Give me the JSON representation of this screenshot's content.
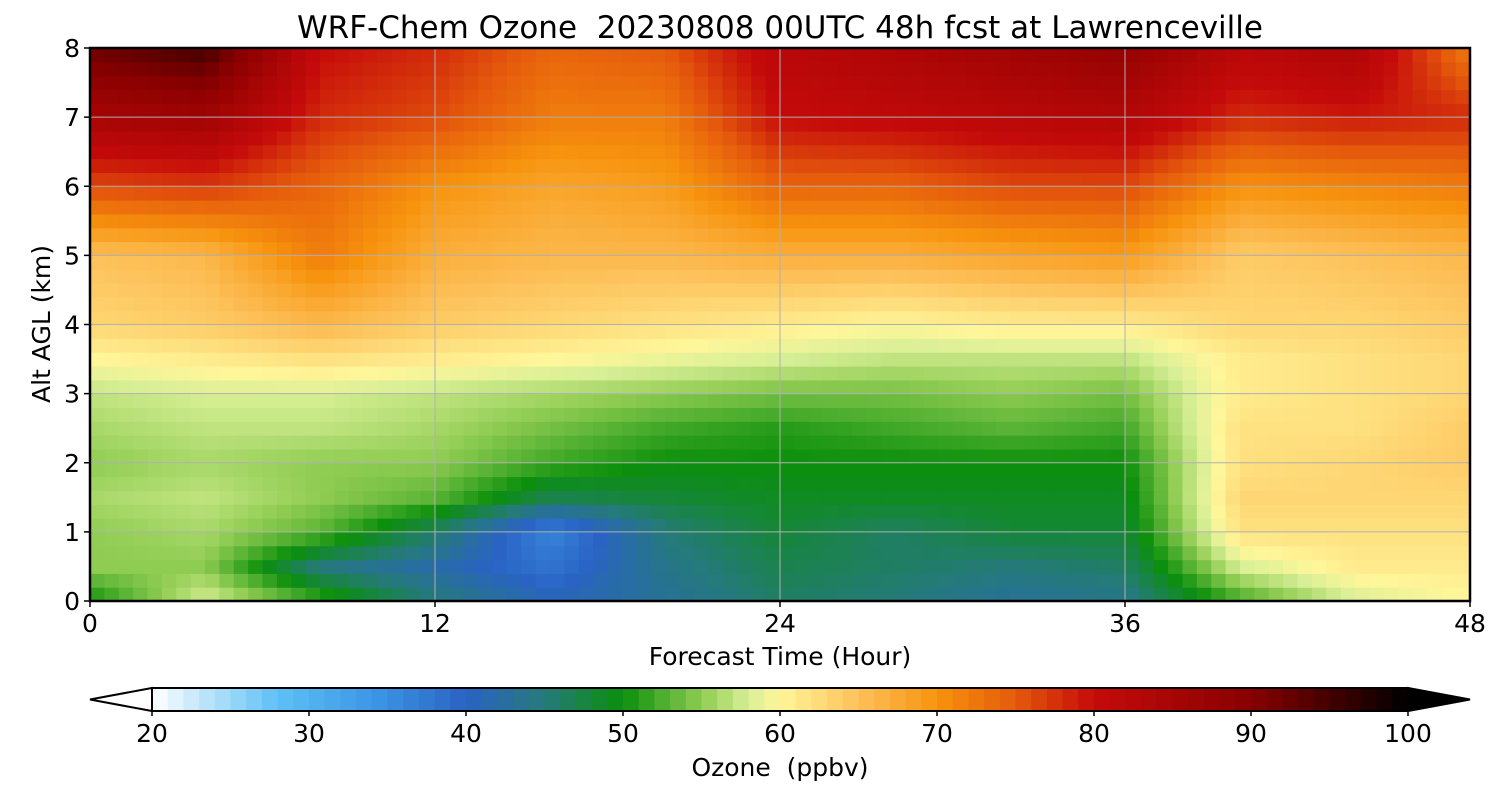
{
  "chart_data": {
    "type": "heatmap",
    "title": "WRF-Chem Ozone  20230808 00UTC 48h fcst at Lawrenceville",
    "xlabel": "Forecast Time (Hour)",
    "ylabel": "Alt AGL (km)",
    "xlim": [
      0,
      48
    ],
    "ylim": [
      0,
      8
    ],
    "x_ticks": [
      0,
      12,
      24,
      36,
      48
    ],
    "y_ticks": [
      0,
      1,
      2,
      3,
      4,
      5,
      6,
      7,
      8
    ],
    "grid": true,
    "x_hours": [
      0,
      4,
      8,
      12,
      16,
      20,
      24,
      28,
      32,
      36,
      40,
      44,
      48
    ],
    "z_km": [
      0,
      0.5,
      1,
      1.5,
      2,
      2.5,
      3,
      3.5,
      4,
      5,
      6,
      7,
      8
    ],
    "values_ppbv": [
      [
        50,
        55,
        55,
        56,
        55,
        56,
        57,
        60,
        63,
        65,
        76,
        85,
        92
      ],
      [
        58,
        55,
        56,
        57,
        56,
        57,
        58,
        61,
        64,
        66,
        77,
        86,
        95
      ],
      [
        52,
        45,
        53,
        55,
        55,
        57,
        58,
        62,
        66,
        72,
        74,
        78,
        80
      ],
      [
        45,
        42,
        46,
        53,
        55,
        56,
        57,
        61,
        64,
        67,
        70,
        76,
        78
      ],
      [
        41,
        38,
        36,
        47,
        52,
        54,
        56,
        60,
        63,
        66,
        68,
        72,
        74
      ],
      [
        43,
        44,
        45,
        48,
        50,
        52,
        55,
        59,
        62,
        66,
        69,
        72,
        75
      ],
      [
        46,
        47,
        48,
        49,
        50,
        51,
        54,
        58,
        61,
        67,
        74,
        80,
        82
      ],
      [
        45,
        46,
        46,
        49,
        50,
        52,
        54,
        57,
        60,
        67,
        74,
        81,
        84
      ],
      [
        43,
        45,
        48,
        49,
        50,
        53,
        55,
        57,
        61,
        68,
        76,
        82,
        86
      ],
      [
        44,
        46,
        48,
        49,
        50,
        52,
        54,
        57,
        61,
        69,
        76,
        83,
        88
      ],
      [
        52,
        58,
        62,
        63,
        62,
        62,
        61,
        61,
        63,
        64,
        70,
        78,
        82
      ],
      [
        58,
        61,
        62,
        63,
        63,
        62,
        62,
        62,
        63,
        65,
        71,
        79,
        84
      ],
      [
        60,
        61,
        62,
        63,
        64,
        64,
        63,
        63,
        64,
        66,
        72,
        78,
        72
      ]
    ],
    "colorbar": {
      "label": "Ozone  (ppbv)",
      "min": 20,
      "max": 100,
      "ticks": [
        20,
        30,
        40,
        50,
        60,
        70,
        80,
        90,
        100
      ],
      "extend": "both",
      "colors": [
        {
          "value": 20,
          "color": "#ffffff"
        },
        {
          "value": 28,
          "color": "#5ec0f5"
        },
        {
          "value": 34,
          "color": "#3d97e6"
        },
        {
          "value": 40,
          "color": "#2a63c4"
        },
        {
          "value": 45,
          "color": "#257a7a"
        },
        {
          "value": 50,
          "color": "#0b8f0b"
        },
        {
          "value": 55,
          "color": "#8fcc52"
        },
        {
          "value": 58,
          "color": "#d8ef96"
        },
        {
          "value": 60,
          "color": "#fff69a"
        },
        {
          "value": 65,
          "color": "#fdc15a"
        },
        {
          "value": 70,
          "color": "#f7930d"
        },
        {
          "value": 75,
          "color": "#e55a0c"
        },
        {
          "value": 80,
          "color": "#c50a0a"
        },
        {
          "value": 90,
          "color": "#880000"
        },
        {
          "value": 100,
          "color": "#000000"
        }
      ]
    }
  }
}
